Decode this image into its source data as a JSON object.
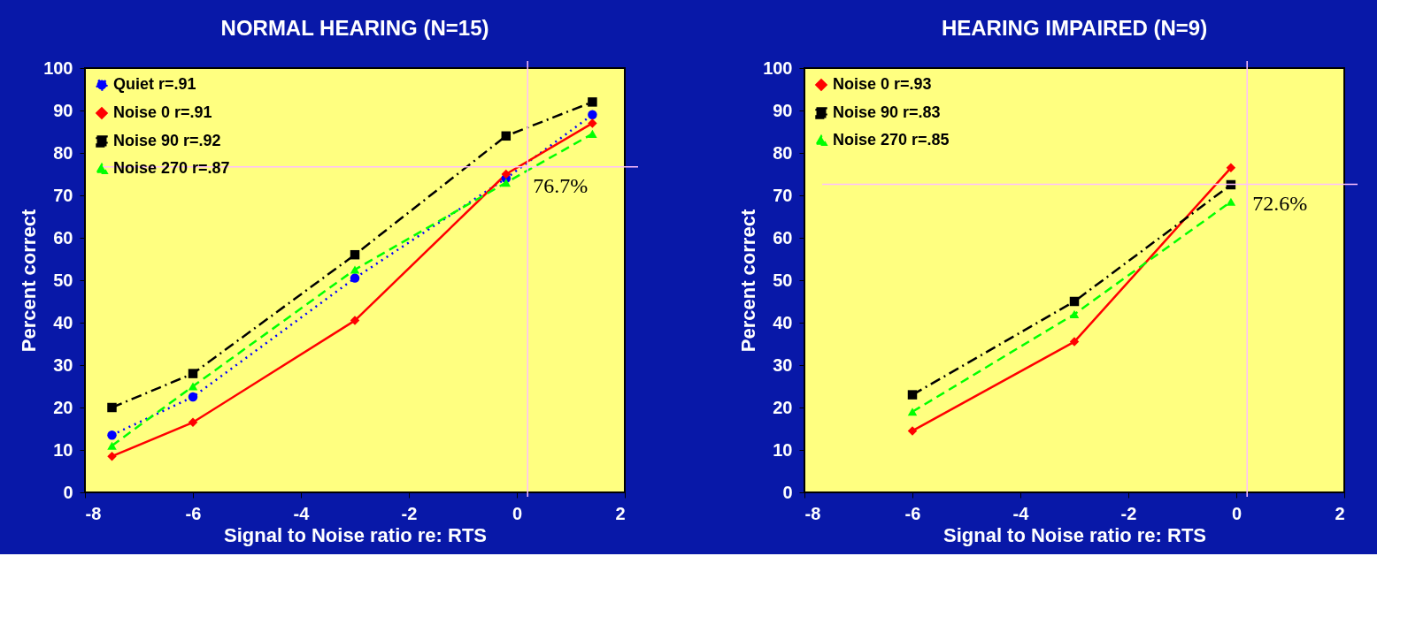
{
  "chart_data": [
    {
      "type": "line",
      "title": "NORMAL HEARING (N=15)",
      "xlabel": "Signal to Noise ratio re: RTS",
      "ylabel": "Percent correct",
      "x": [
        -7.5,
        -6,
        -3,
        -0.2,
        1.4
      ],
      "xlim": [
        -8,
        2
      ],
      "xticks": [
        -8,
        -6,
        -4,
        -2,
        0,
        2
      ],
      "ylim": [
        0,
        100
      ],
      "yticks": [
        0,
        10,
        20,
        30,
        40,
        50,
        60,
        70,
        80,
        90,
        100
      ],
      "grid": false,
      "legend": "top left",
      "series": [
        {
          "name": "Quiet r=.91",
          "color": "#0000ff",
          "marker": "circle",
          "line_style": "dotted",
          "values": [
            13.5,
            22.5,
            50.5,
            74,
            89
          ]
        },
        {
          "name": "Noise 0 r=.91",
          "color": "#ff0000",
          "marker": "diamond",
          "line_style": "solid",
          "values": [
            8.5,
            16.5,
            40.5,
            75,
            87
          ]
        },
        {
          "name": "Noise 90 r=.92",
          "color": "#000000",
          "marker": "square",
          "line_style": "dashdot",
          "values": [
            20,
            28,
            56,
            84,
            92
          ]
        },
        {
          "name": "Noise 270 r=.87",
          "color": "#00ff00",
          "marker": "triangle",
          "line_style": "dashed",
          "values": [
            11,
            25,
            52.5,
            73,
            84.5
          ]
        }
      ],
      "ref_lines": [
        {
          "axis": "y",
          "value": 76.7,
          "label": "76.7%",
          "color": "#ffc0ff"
        },
        {
          "axis": "x",
          "value": 0.2,
          "color": "#ffc0ff"
        }
      ]
    },
    {
      "type": "line",
      "title": "HEARING IMPAIRED (N=9)",
      "xlabel": "Signal to Noise ratio re: RTS",
      "ylabel": "Percent correct",
      "x": [
        -6,
        -3,
        -0.1
      ],
      "xlim": [
        -8,
        2
      ],
      "xticks": [
        -8,
        -6,
        -4,
        -2,
        0,
        2
      ],
      "ylim": [
        0,
        100
      ],
      "yticks": [
        0,
        10,
        20,
        30,
        40,
        50,
        60,
        70,
        80,
        90,
        100
      ],
      "grid": false,
      "legend": "top left",
      "series": [
        {
          "name": "Noise 0 r=.93",
          "color": "#ff0000",
          "marker": "diamond",
          "line_style": "solid",
          "values": [
            14.5,
            35.5,
            76.5
          ]
        },
        {
          "name": "Noise 90 r=.83",
          "color": "#000000",
          "marker": "square",
          "line_style": "dashdot",
          "values": [
            23,
            45,
            72.5
          ]
        },
        {
          "name": "Noise 270 r=.85",
          "color": "#00ff00",
          "marker": "triangle",
          "line_style": "dashed",
          "values": [
            19,
            42,
            68.5
          ]
        }
      ],
      "ref_lines": [
        {
          "axis": "y",
          "value": 72.6,
          "label": "72.6%",
          "color": "#ffc0ff"
        },
        {
          "axis": "x",
          "value": 0.2,
          "color": "#ffc0ff"
        }
      ]
    }
  ]
}
